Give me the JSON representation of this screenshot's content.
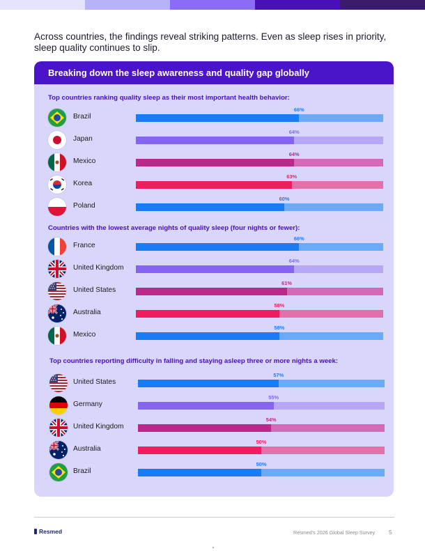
{
  "header_colors": [
    "#e4e2fd",
    "#b7b3fb",
    "#8a6cf6",
    "#4a10b8",
    "#3a1a6a"
  ],
  "intro": "Across countries, the findings reveal striking patterns. Even as sleep rises in priority, sleep quality continues to slip.",
  "card": {
    "title": "Breaking down the sleep awareness and quality gap globally",
    "sections": [
      {
        "title": "Top countries ranking quality sleep as their most important health behavior:",
        "rows": [
          {
            "country": "Brazil",
            "value": 66,
            "label": "66%",
            "flag": "brazil-flag-icon",
            "color": "#1a7cf5",
            "track": "#6aaaf7",
            "label_color": "#1a7cf5"
          },
          {
            "country": "Japan",
            "value": 64,
            "label": "64%",
            "flag": "japan-flag-icon",
            "color": "#8565f0",
            "track": "#b8a7f7",
            "label_color": "#8565f0"
          },
          {
            "country": "Mexico",
            "value": 64,
            "label": "64%",
            "flag": "mexico-flag-icon",
            "color": "#b8298a",
            "track": "#d469b7",
            "label_color": "#b8298a"
          },
          {
            "country": "Korea",
            "value": 63,
            "label": "63%",
            "flag": "korea-flag-icon",
            "color": "#ee1d60",
            "track": "#e270a9",
            "label_color": "#ee1d60"
          },
          {
            "country": "Poland",
            "value": 60,
            "label": "60%",
            "flag": "poland-flag-icon",
            "color": "#1a7cf5",
            "track": "#6aaaf7",
            "label_color": "#1a7cf5"
          }
        ]
      },
      {
        "title": "Countries with the lowest average nights of quality sleep (four nights or fewer):",
        "rows": [
          {
            "country": "France",
            "value": 66,
            "label": "66%",
            "flag": "france-flag-icon",
            "color": "#1a7cf5",
            "track": "#6aaaf7",
            "label_color": "#1a7cf5"
          },
          {
            "country": "United Kingdom",
            "value": 64,
            "label": "64%",
            "flag": "uk-flag-icon",
            "color": "#8565f0",
            "track": "#b8a7f7",
            "label_color": "#8565f0"
          },
          {
            "country": "United States",
            "value": 61,
            "label": "61%",
            "flag": "us-flag-icon",
            "color": "#b8298a",
            "track": "#d469b7",
            "label_color": "#b8298a"
          },
          {
            "country": "Australia",
            "value": 58,
            "label": "58%",
            "flag": "australia-flag-icon",
            "color": "#ee1d60",
            "track": "#e270a9",
            "label_color": "#ee1d60"
          },
          {
            "country": "Mexico",
            "value": 58,
            "label": "58%",
            "flag": "mexico-flag-icon",
            "color": "#1a7cf5",
            "track": "#6aaaf7",
            "label_color": "#1a7cf5"
          }
        ]
      },
      {
        "title": "Top countries reporting difficulty in falling and staying asleep three or more nights a week:",
        "rows": [
          {
            "country": "United States",
            "value": 57,
            "label": "57%",
            "flag": "us-flag-icon",
            "color": "#1a7cf5",
            "track": "#6aaaf7",
            "label_color": "#1a7cf5"
          },
          {
            "country": "Germany",
            "value": 55,
            "label": "55%",
            "flag": "germany-flag-icon",
            "color": "#8565f0",
            "track": "#b8a7f7",
            "label_color": "#8565f0"
          },
          {
            "country": "United Kingdom",
            "value": 54,
            "label": "54%",
            "flag": "uk-flag-icon",
            "color": "#b8298a",
            "track": "#d469b7",
            "label_color": "#b8298a"
          },
          {
            "country": "Australia",
            "value": 50,
            "label": "50%",
            "flag": "australia-flag-icon",
            "color": "#ee1d60",
            "track": "#e270a9",
            "label_color": "#ee1d60"
          },
          {
            "country": "Brazil",
            "value": 50,
            "label": "50%",
            "flag": "brazil-flag-icon",
            "color": "#1a7cf5",
            "track": "#6aaaf7",
            "label_color": "#1a7cf5"
          }
        ]
      }
    ]
  },
  "footer": {
    "logo": "Resmed",
    "source": "Resmed's 2026 Global Sleep Survey",
    "page": "5"
  }
}
